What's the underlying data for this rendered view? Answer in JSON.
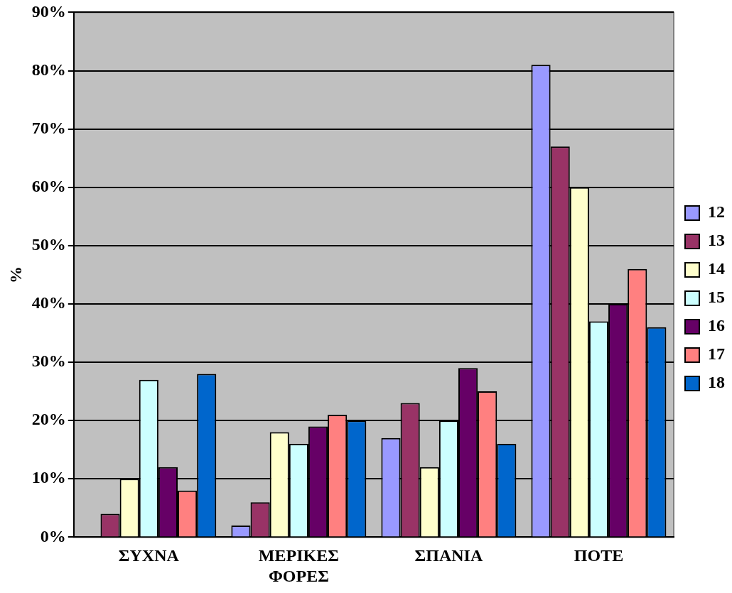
{
  "chart_data": {
    "type": "bar",
    "ylabel": "%",
    "categories": [
      "ΣΥΧΝΑ",
      "ΜΕΡΙΚΕΣ ΦΟΡΕΣ",
      "ΣΠΑΝΙΑ",
      "ΠΟΤΕ"
    ],
    "series": [
      {
        "name": "12",
        "color": "#9999ff",
        "values": [
          0,
          2,
          17,
          81
        ]
      },
      {
        "name": "13",
        "color": "#993366",
        "values": [
          4,
          6,
          23,
          67
        ]
      },
      {
        "name": "14",
        "color": "#ffffcc",
        "values": [
          10,
          18,
          12,
          60
        ]
      },
      {
        "name": "15",
        "color": "#ccffff",
        "values": [
          27,
          16,
          20,
          37
        ]
      },
      {
        "name": "16",
        "color": "#660066",
        "values": [
          12,
          19,
          29,
          40
        ]
      },
      {
        "name": "17",
        "color": "#ff8080",
        "values": [
          8,
          21,
          25,
          46
        ]
      },
      {
        "name": "18",
        "color": "#0066cc",
        "values": [
          28,
          20,
          16,
          36
        ]
      }
    ],
    "ylim": [
      0,
      90
    ],
    "yticks": [
      {
        "value": 0,
        "label": "0%"
      },
      {
        "value": 10,
        "label": "10%"
      },
      {
        "value": 20,
        "label": "20%"
      },
      {
        "value": 30,
        "label": "30%"
      },
      {
        "value": 40,
        "label": "40%"
      },
      {
        "value": 50,
        "label": "50%"
      },
      {
        "value": 60,
        "label": "60%"
      },
      {
        "value": 70,
        "label": "70%"
      },
      {
        "value": 80,
        "label": "80%"
      },
      {
        "value": 90,
        "label": "90%"
      }
    ],
    "grid": "y",
    "legend": "right"
  }
}
